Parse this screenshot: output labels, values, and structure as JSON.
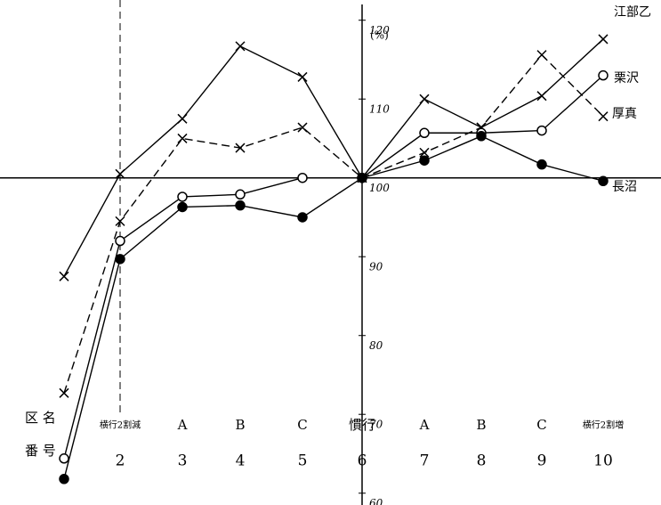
{
  "chart_data": {
    "type": "line",
    "y_unit": "(%)",
    "row_labels": [
      "区 名",
      "番 号"
    ],
    "categories": [
      null,
      "横行2割減",
      "A",
      "B",
      "C",
      "慣行",
      "A",
      "B",
      "C",
      "横行2割増"
    ],
    "numbers": [
      null,
      2,
      3,
      4,
      5,
      6,
      7,
      8,
      9,
      10
    ],
    "series": [
      {
        "name": "江部乙",
        "color": "#000000",
        "marker": "x",
        "dashed": false,
        "values": [
          87.5,
          100.5,
          107.5,
          116.7,
          112.8,
          100,
          110,
          106.4,
          110.4,
          117.6
        ]
      },
      {
        "name": "厚真",
        "color": "#000000",
        "marker": "x",
        "dashed": true,
        "values": [
          72.7,
          94.5,
          105,
          103.8,
          106.4,
          100,
          103.2,
          106.4,
          115.6,
          107.8
        ]
      },
      {
        "name": "栗沢",
        "color": "#000000",
        "marker": "open",
        "dashed": false,
        "values": [
          64.4,
          92,
          97.6,
          97.9,
          100,
          100,
          105.7,
          105.7,
          106,
          113
        ]
      },
      {
        "name": "長沼",
        "color": "#000000",
        "marker": "filled",
        "dashed": false,
        "values": [
          61.8,
          89.7,
          96.3,
          96.5,
          95,
          100,
          102.2,
          105.3,
          101.7,
          99.6
        ]
      }
    ],
    "ylim": [
      58.5,
      122
    ],
    "yticks": [
      60,
      70,
      80,
      90,
      100,
      110,
      120
    ],
    "reference_line": 100,
    "divider_category": 1
  }
}
